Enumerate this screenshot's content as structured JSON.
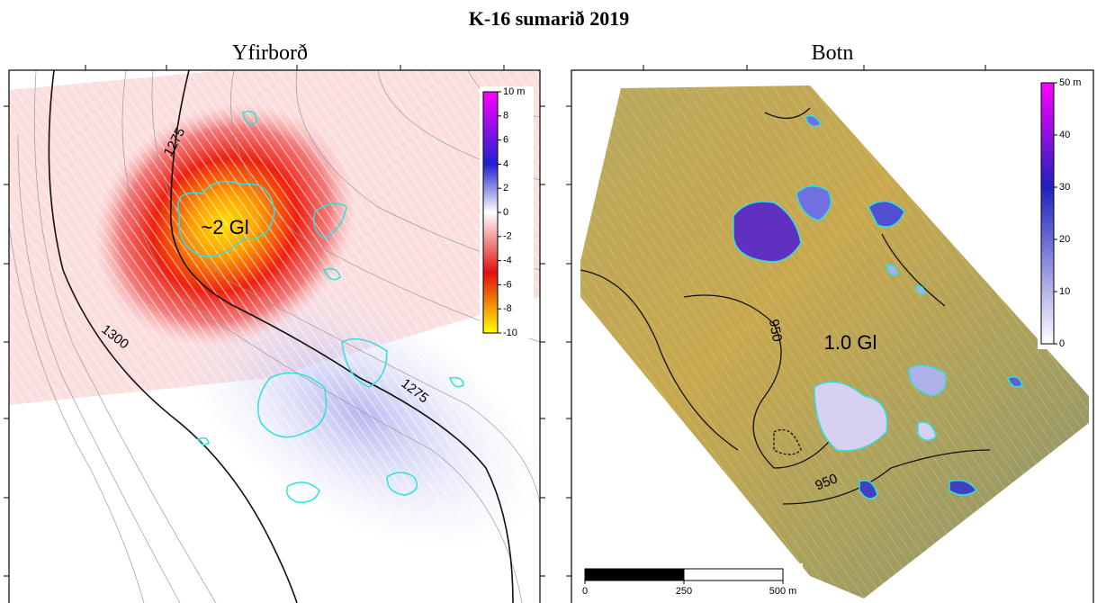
{
  "title": "K-16 sumarið 2019",
  "panels": [
    {
      "title": "Yfirborð",
      "colorbar": {
        "ticks": [
          {
            "value": 10,
            "label": "10 m"
          },
          8,
          6,
          4,
          2,
          0,
          -2,
          -4,
          -6,
          -8,
          -10
        ]
      },
      "contour_labels": [
        "1275",
        "1300",
        "1275"
      ],
      "annotation": "~2 Gl"
    },
    {
      "title": "Botn",
      "colorbar": {
        "ticks": [
          {
            "value": 50,
            "label": "50 m"
          },
          40,
          30,
          20,
          10,
          0
        ]
      },
      "contour_labels": [
        "950",
        "950"
      ],
      "annotation": "1.0 Gl",
      "scale_bar": {
        "ticks": [
          0,
          250,
          {
            "value": 500,
            "label": "500 m"
          }
        ]
      }
    }
  ]
}
